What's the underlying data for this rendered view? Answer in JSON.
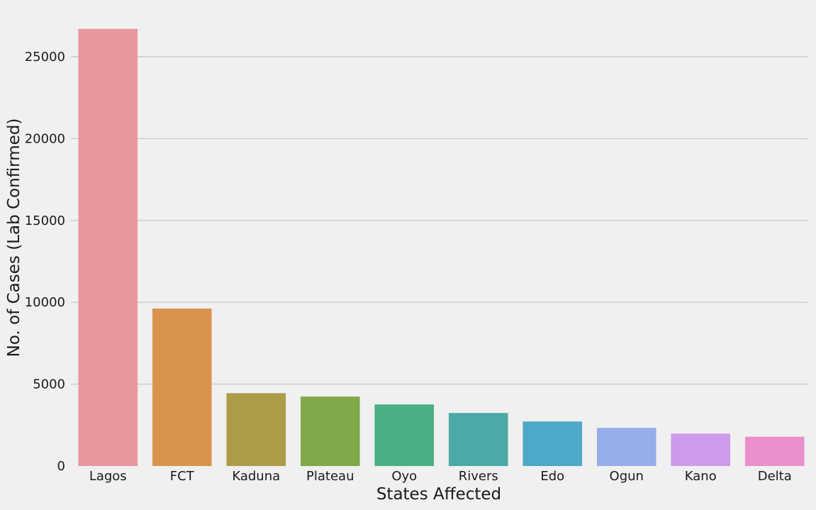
{
  "chart_data": {
    "type": "bar",
    "title": "",
    "xlabel": "States Affected",
    "ylabel": "No. of Cases (Lab Confirmed)",
    "categories": [
      "Lagos",
      "FCT",
      "Kaduna",
      "Plateau",
      "Oyo",
      "Rivers",
      "Edo",
      "Ogun",
      "Kano",
      "Delta"
    ],
    "values": [
      26700,
      9620,
      4450,
      4240,
      3760,
      3240,
      2720,
      2330,
      1980,
      1790
    ],
    "ylim": [
      0,
      27000
    ],
    "yticks": [
      0,
      5000,
      10000,
      15000,
      20000,
      25000
    ],
    "grid": "horizontal",
    "colors": [
      "#ea969f",
      "#d8944e",
      "#ab9d48",
      "#81a848",
      "#4aaf83",
      "#4ba9a6",
      "#4ea8c7",
      "#95adea",
      "#cd9bea",
      "#ea8fcb"
    ]
  }
}
